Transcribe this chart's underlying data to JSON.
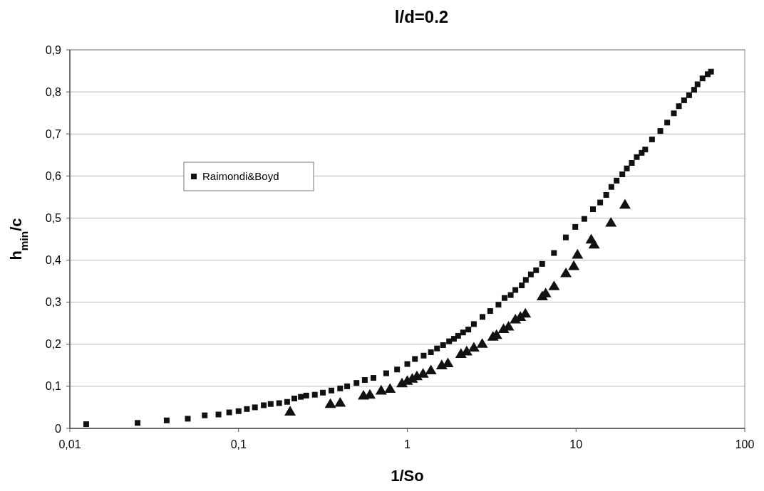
{
  "chart_data": {
    "type": "scatter",
    "title": "l/d=0.2",
    "xlabel": "1/So",
    "ylabel": "h$_{min}$/c",
    "log": "x",
    "grid": "y",
    "legend": "top left",
    "xlim": [
      0.01,
      100
    ],
    "ylim": [
      0,
      0.9
    ],
    "xticks": [
      {
        "value": 0.01,
        "label": "0,01"
      },
      {
        "value": 0.1,
        "label": "0,1"
      },
      1,
      10,
      100
    ],
    "yticks": [
      0,
      {
        "value": 0.1,
        "label": "0,1"
      },
      {
        "value": 0.2,
        "label": "0,2"
      },
      {
        "value": 0.3,
        "label": "0,3"
      },
      {
        "value": 0.4,
        "label": "0,4"
      },
      {
        "value": 0.5,
        "label": "0,5"
      },
      {
        "value": 0.6,
        "label": "0,6"
      },
      {
        "value": 0.7,
        "label": "0,7"
      },
      {
        "value": 0.8,
        "label": "0,8"
      },
      {
        "value": 0.9,
        "label": "0,9"
      }
    ],
    "series": [
      {
        "color": "#111111",
        "marker": "triangle",
        "x": [
          0.202,
          0.35,
          0.4,
          0.55,
          0.6,
          0.7,
          0.79,
          0.93,
          1.0,
          1.07,
          1.14,
          1.24,
          1.38,
          1.6,
          1.74,
          2.08,
          2.25,
          2.48,
          2.78,
          3.22,
          3.38,
          3.72,
          3.98,
          4.37,
          4.68,
          5.01,
          6.31,
          6.61,
          7.41,
          8.71,
          9.7,
          10.2,
          12.3,
          12.8,
          16.1,
          19.5
        ],
        "values": [
          0.04,
          0.058,
          0.061,
          0.078,
          0.08,
          0.09,
          0.094,
          0.107,
          0.113,
          0.118,
          0.124,
          0.13,
          0.138,
          0.15,
          0.155,
          0.177,
          0.183,
          0.192,
          0.201,
          0.218,
          0.222,
          0.236,
          0.242,
          0.259,
          0.265,
          0.273,
          0.314,
          0.321,
          0.338,
          0.369,
          0.386,
          0.413,
          0.449,
          0.437,
          0.489,
          0.532
        ]
      },
      {
        "name": "Raimondi&Boyd",
        "color": "#111111",
        "marker": "square",
        "x": [
          0.0125,
          0.0252,
          0.0375,
          0.05,
          0.063,
          0.076,
          0.088,
          0.1,
          0.112,
          0.125,
          0.141,
          0.155,
          0.174,
          0.194,
          0.214,
          0.234,
          0.252,
          0.283,
          0.316,
          0.355,
          0.4,
          0.44,
          0.5,
          0.56,
          0.63,
          0.75,
          0.87,
          1.0,
          1.11,
          1.25,
          1.38,
          1.5,
          1.63,
          1.77,
          1.89,
          2.0,
          2.14,
          2.3,
          2.48,
          2.79,
          3.1,
          3.47,
          3.77,
          4.1,
          4.37,
          4.77,
          5.04,
          5.4,
          5.8,
          6.3,
          7.4,
          8.7,
          9.9,
          11.2,
          12.6,
          13.9,
          15.1,
          16.2,
          17.4,
          18.8,
          20.0,
          21.4,
          22.9,
          24.5,
          25.7,
          28.2,
          31.6,
          34.7,
          38.0,
          40.7,
          43.7,
          46.8,
          50.1,
          52.5,
          56.2,
          60.3,
          63.1
        ],
        "values": [
          0.01,
          0.013,
          0.019,
          0.023,
          0.031,
          0.033,
          0.038,
          0.041,
          0.046,
          0.05,
          0.055,
          0.058,
          0.06,
          0.063,
          0.071,
          0.075,
          0.078,
          0.08,
          0.085,
          0.09,
          0.095,
          0.1,
          0.108,
          0.115,
          0.12,
          0.131,
          0.14,
          0.153,
          0.165,
          0.173,
          0.181,
          0.19,
          0.198,
          0.207,
          0.213,
          0.22,
          0.228,
          0.235,
          0.248,
          0.265,
          0.279,
          0.294,
          0.31,
          0.317,
          0.329,
          0.34,
          0.353,
          0.366,
          0.376,
          0.391,
          0.417,
          0.454,
          0.479,
          0.498,
          0.521,
          0.537,
          0.555,
          0.574,
          0.589,
          0.604,
          0.618,
          0.631,
          0.645,
          0.655,
          0.663,
          0.687,
          0.707,
          0.727,
          0.749,
          0.766,
          0.78,
          0.792,
          0.805,
          0.818,
          0.832,
          0.842,
          0.848
        ]
      }
    ]
  }
}
